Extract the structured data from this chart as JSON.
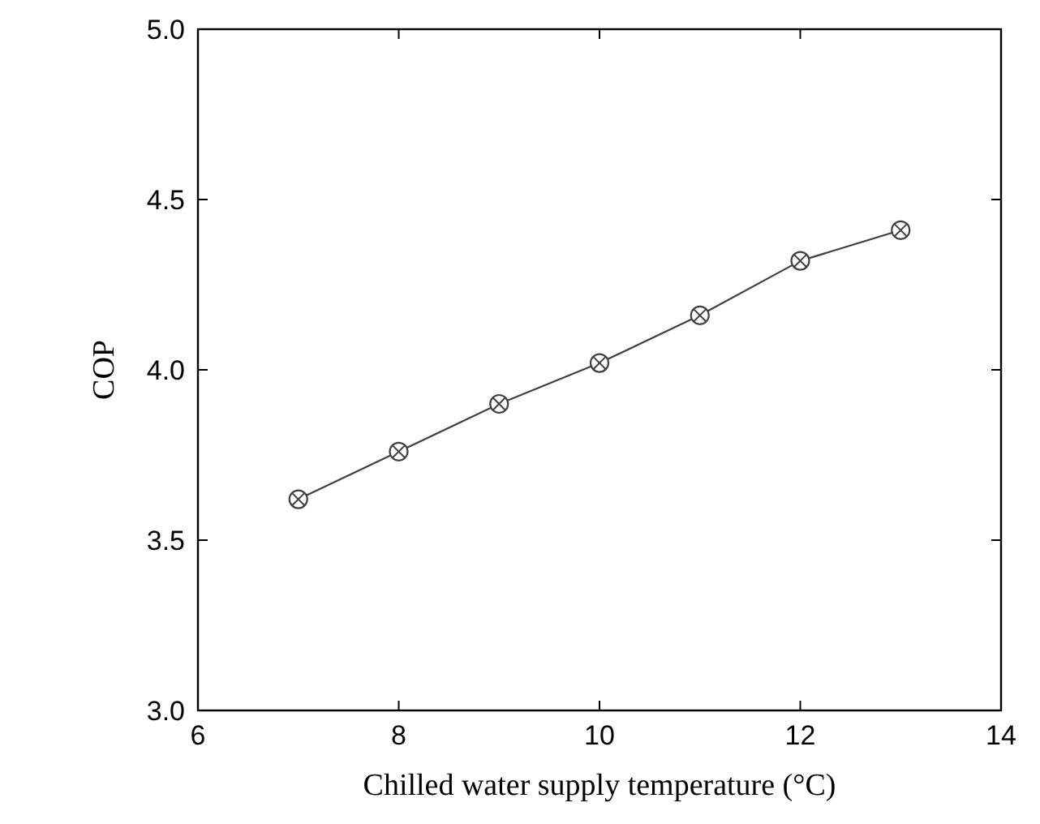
{
  "chart_data": {
    "type": "line",
    "xlabel": "Chilled water supply temperature (°C)",
    "ylabel": "COP",
    "x": [
      7,
      8,
      9,
      10,
      11,
      12,
      13
    ],
    "series": [
      {
        "color": "#404040",
        "values": [
          3.62,
          3.76,
          3.9,
          4.02,
          4.16,
          4.32,
          4.41
        ]
      }
    ],
    "xlim": [
      6,
      14
    ],
    "xticks": [
      6,
      8,
      10,
      12,
      14
    ],
    "ylim": [
      3.0,
      5.0
    ],
    "yticks": [
      {
        "value": 3,
        "label": "3.0"
      },
      {
        "value": 3.5,
        "label": "3.5"
      },
      {
        "value": 4,
        "label": "4.0"
      },
      {
        "value": 4.5,
        "label": "4.5"
      },
      {
        "value": 5,
        "label": "5.0"
      }
    ],
    "marker": "cross",
    "line_style": "solid"
  }
}
